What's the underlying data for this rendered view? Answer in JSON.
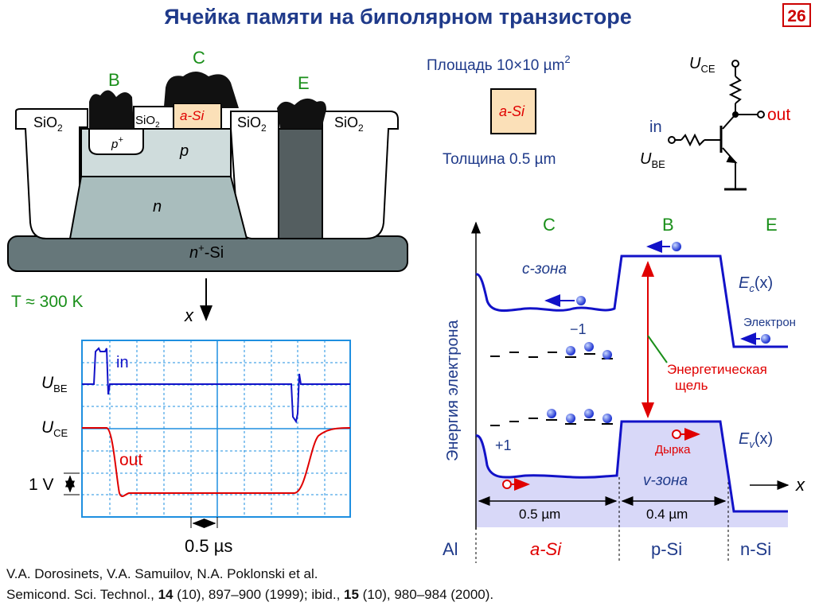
{
  "page": {
    "title": "Ячейка памяти на биполярном транзисторе",
    "page_number": "26"
  },
  "colors": {
    "title_blue": "#1f3a8a",
    "trace_blue": "#1212c8",
    "trace_red": "#e00000",
    "green": "#1a8f1a",
    "band_fill": "#d8d8f8",
    "oscilloscope_grid": "#1e8fe0"
  },
  "structure": {
    "terminal_b": "B",
    "terminal_c": "C",
    "terminal_e": "E",
    "oxide": "SiO",
    "oxide_sub": "2",
    "layer_p_plus": "p",
    "layer_p_plus_sup": "+",
    "layer_p": "p",
    "layer_n": "n",
    "layer_a_si": "a-Si",
    "substrate": "n",
    "substrate_sup": "+",
    "substrate_suffix": "-Si",
    "temperature": "T ≈ 300 K",
    "x_axis": "x"
  },
  "cell": {
    "area_prefix": "Площадь 10×10 µm",
    "area_sup": "2",
    "label": "a-Si",
    "thickness": "Толщина 0.5 µm"
  },
  "circuit": {
    "u_ce": "U",
    "u_ce_sub": "CE",
    "u_be": "U",
    "u_be_sub": "BE",
    "in": "in",
    "out": "out"
  },
  "scope": {
    "u_be": "U",
    "u_be_sub": "BE",
    "u_ce": "U",
    "u_ce_sub": "CE",
    "in": "in",
    "out": "out",
    "volt_scale": "1 V",
    "time_scale": "0.5 µs"
  },
  "band": {
    "axis_label": "Энергия электрона",
    "region_c": "C",
    "region_b": "B",
    "region_e": "E",
    "c_zone": "c-зона",
    "v_zone": "v-зона",
    "ec_label": "E",
    "ec_sub": "c",
    "ec_arg": "(x)",
    "ev_label": "E",
    "ev_sub": "v",
    "ev_arg": "(x)",
    "electron": "Электрон",
    "hole": "Дырка",
    "minus_one": "−1",
    "plus_one": "+1",
    "gap_line1": "Энергетическая",
    "gap_line2": "щель",
    "x_axis": "x",
    "width_1": "0.5 µm",
    "width_2": "0.4 µm",
    "region_al": "Al",
    "region_a_si": "a-Si",
    "region_p_si": "p-Si",
    "region_n_si": "n-Si"
  },
  "references": {
    "authors": "V.A. Dorosinets, V.A. Samuilov, N.A. Poklonski et al.",
    "line2_prefix": "Semicond. Sci. Technol., ",
    "vol1": "14",
    "line2_mid1": " (10), 897–900 (1999); ibid., ",
    "vol2": "15",
    "line2_mid2": " (10), 980–984 (2000)."
  }
}
